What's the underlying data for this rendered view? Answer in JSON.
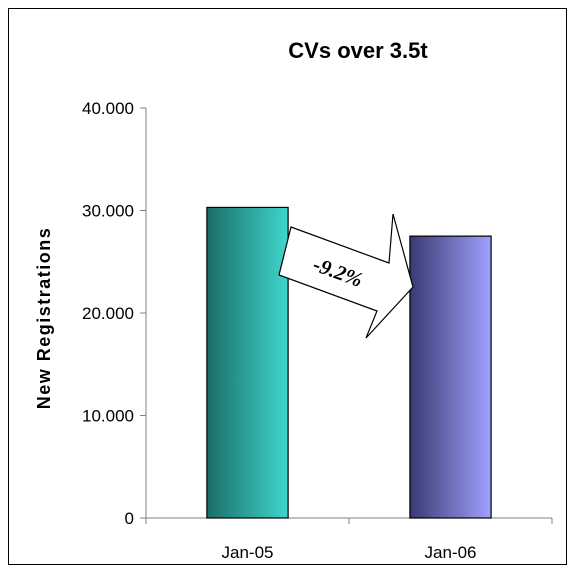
{
  "chart_data": {
    "type": "bar",
    "title": "CVs over 3.5t",
    "xlabel": "",
    "ylabel": "New Registrations",
    "categories": [
      "Jan-05",
      "Jan-06"
    ],
    "values": [
      30300,
      27500
    ],
    "ylim": [
      0,
      40000
    ],
    "yticks": [
      {
        "value": 0,
        "label": "0"
      },
      {
        "value": 10000,
        "label": "10.000"
      },
      {
        "value": 20000,
        "label": "20.000"
      },
      {
        "value": 30000,
        "label": "30.000"
      },
      {
        "value": 40000,
        "label": "40.000"
      }
    ],
    "grid": false,
    "legend": "none",
    "annotation": "-9.2%",
    "colors": {
      "bar1_dark": "#1a6e66",
      "bar1_light": "#3fd6cc",
      "bar2_dark": "#3a3a72",
      "bar2_light": "#a0a0ff",
      "axis": "#808080"
    }
  }
}
